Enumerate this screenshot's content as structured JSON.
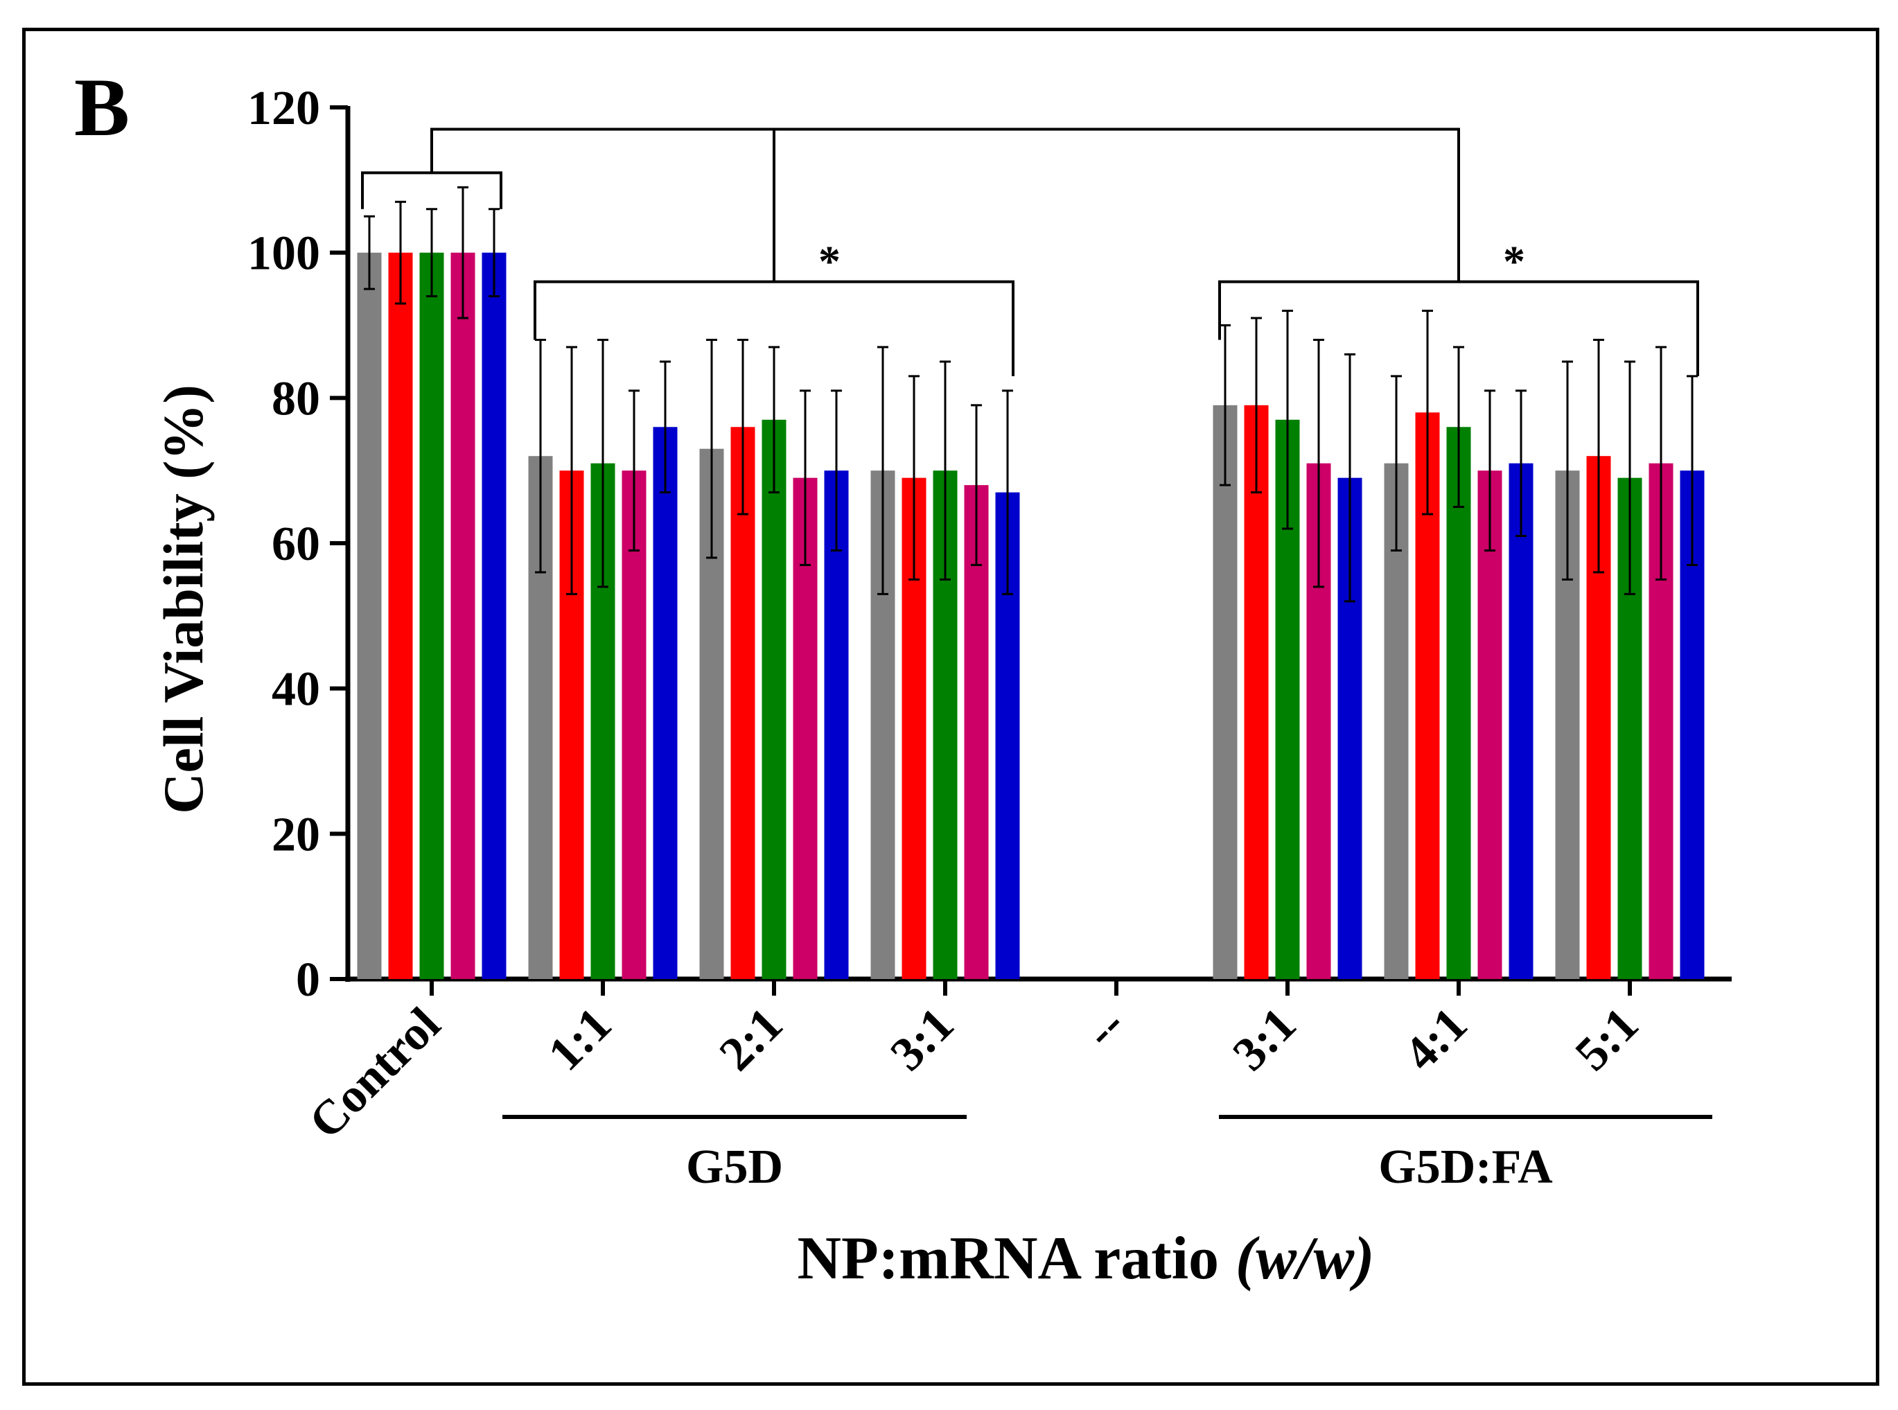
{
  "panel_label": "B",
  "chart_data": {
    "type": "bar",
    "ylabel": "Cell Viability (%)",
    "xlabel": "NP:mRNA ratio",
    "xlabel_italic": "(w/w)",
    "ylim": [
      0,
      120
    ],
    "yticks": [
      0,
      20,
      40,
      60,
      80,
      100,
      120
    ],
    "colors": [
      "#808080",
      "#ff0000",
      "#008000",
      "#cc0066",
      "#0000cc"
    ],
    "categories": [
      "Control",
      "1:1",
      "2:1",
      "3:1",
      "--",
      "3:1",
      "4:1",
      "5:1"
    ],
    "series": [
      {
        "values": [
          100,
          72,
          73,
          70,
          0,
          79,
          71,
          70
        ],
        "errors": [
          5,
          16,
          15,
          17,
          0,
          11,
          12,
          15
        ]
      },
      {
        "values": [
          100,
          70,
          76,
          69,
          0,
          79,
          78,
          72
        ],
        "errors": [
          7,
          17,
          12,
          14,
          0,
          12,
          14,
          16
        ]
      },
      {
        "values": [
          100,
          71,
          77,
          70,
          0,
          77,
          76,
          69
        ],
        "errors": [
          6,
          17,
          10,
          15,
          0,
          15,
          11,
          16
        ]
      },
      {
        "values": [
          100,
          70,
          69,
          68,
          0,
          71,
          70,
          71
        ],
        "errors": [
          9,
          11,
          12,
          11,
          0,
          17,
          11,
          16
        ]
      },
      {
        "values": [
          100,
          76,
          70,
          67,
          0,
          69,
          71,
          70
        ],
        "errors": [
          6,
          9,
          11,
          14,
          0,
          17,
          10,
          13
        ]
      }
    ],
    "groups": [
      {
        "label": "G5D",
        "from": 1,
        "to": 3
      },
      {
        "label": "G5D:FA",
        "from": 5,
        "to": 7
      }
    ],
    "significance": [
      {
        "label": "*",
        "from": 1,
        "to": 3
      },
      {
        "label": "*",
        "from": 5,
        "to": 7
      }
    ]
  }
}
